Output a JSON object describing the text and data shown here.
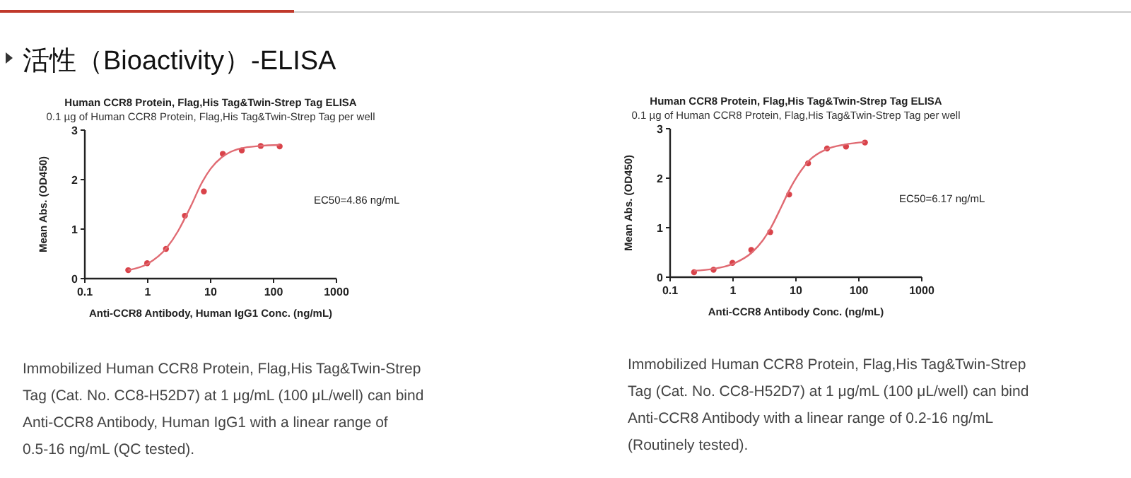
{
  "chart_data": [
    {
      "type": "other",
      "title": "活性（Bioactivity）-ELISA"
    },
    {
      "type": "scatter",
      "title": "Human CCR8 Protein, Flag,His Tag&Twin-Strep Tag ELISA",
      "subtitle": "0.1 µg of Human CCR8 Protein, Flag,His Tag&Twin-Strep Tag per well",
      "xlabel": "Anti-CCR8 Antibody, Human IgG1 Conc. (ng/mL)",
      "ylabel": "Mean Abs. (OD450)",
      "log": "x",
      "xlim": [
        0.1,
        1000
      ],
      "xticks": [
        0.1,
        1,
        10,
        100,
        1000
      ],
      "ylim": [
        0,
        3
      ],
      "yticks": [
        0,
        1,
        2,
        3
      ],
      "grid": false,
      "series": [
        {
          "type": "scatter",
          "marker": "circle",
          "color": "#d9434a",
          "x": [
            0.49,
            0.98,
            1.95,
            3.9,
            7.8,
            15.6,
            31.25,
            62.5,
            125
          ],
          "values": [
            0.17,
            0.31,
            0.6,
            1.27,
            1.76,
            2.52,
            2.59,
            2.68,
            2.67
          ]
        },
        {
          "type": "line",
          "color": "#e06a72",
          "x": [
            0.49,
            1,
            2,
            3,
            4,
            5,
            7,
            10,
            15,
            20,
            30,
            60,
            125
          ],
          "values": [
            0.17,
            0.3,
            0.62,
            0.95,
            1.25,
            1.5,
            1.9,
            2.22,
            2.45,
            2.55,
            2.63,
            2.68,
            2.7
          ]
        }
      ],
      "annotations": [
        "EC50=4.86 ng/mL",
        "Immobilized Human CCR8 Protein, Flag,His Tag&Twin-Strep Tag (Cat. No. CC8-H52D7) at 1 μg/mL (100 μL/well) can bind Anti-CCR8 Antibody, Human IgG1 with a linear range of 0.5-16 ng/mL (QC tested)."
      ]
    },
    {
      "type": "scatter",
      "title": "Human CCR8 Protein, Flag,His Tag&Twin-Strep Tag ELISA",
      "subtitle": "0.1 µg of Human CCR8 Protein, Flag,His Tag&Twin-Strep Tag per well",
      "xlabel": "Anti-CCR8 Antibody Conc. (ng/mL)",
      "ylabel": "Mean Abs. (OD450)",
      "log": "x",
      "xlim": [
        0.1,
        1000
      ],
      "xticks": [
        0.1,
        1,
        10,
        100,
        1000
      ],
      "ylim": [
        0,
        3
      ],
      "yticks": [
        0,
        1,
        2,
        3
      ],
      "grid": false,
      "series": [
        {
          "type": "scatter",
          "marker": "circle",
          "color": "#d9434a",
          "x": [
            0.24,
            0.49,
            0.98,
            1.95,
            3.9,
            7.8,
            15.6,
            31.25,
            62.5,
            125
          ],
          "values": [
            0.1,
            0.15,
            0.29,
            0.55,
            0.91,
            1.67,
            2.3,
            2.6,
            2.64,
            2.72
          ]
        },
        {
          "type": "line",
          "color": "#e06a72",
          "x": [
            0.24,
            0.5,
            1,
            2,
            3,
            4,
            6,
            8,
            12,
            16,
            30,
            60,
            125
          ],
          "values": [
            0.13,
            0.17,
            0.27,
            0.5,
            0.75,
            1.0,
            1.45,
            1.78,
            2.15,
            2.35,
            2.58,
            2.68,
            2.73
          ]
        }
      ],
      "annotations": [
        "EC50=6.17 ng/mL",
        "Immobilized Human CCR8 Protein, Flag,His Tag&Twin-Strep Tag (Cat. No. CC8-H52D7) at 1 μg/mL (100 μL/well) can bind Anti-CCR8 Antibody with a linear range of 0.2-16 ng/mL (Routinely tested)."
      ]
    }
  ]
}
